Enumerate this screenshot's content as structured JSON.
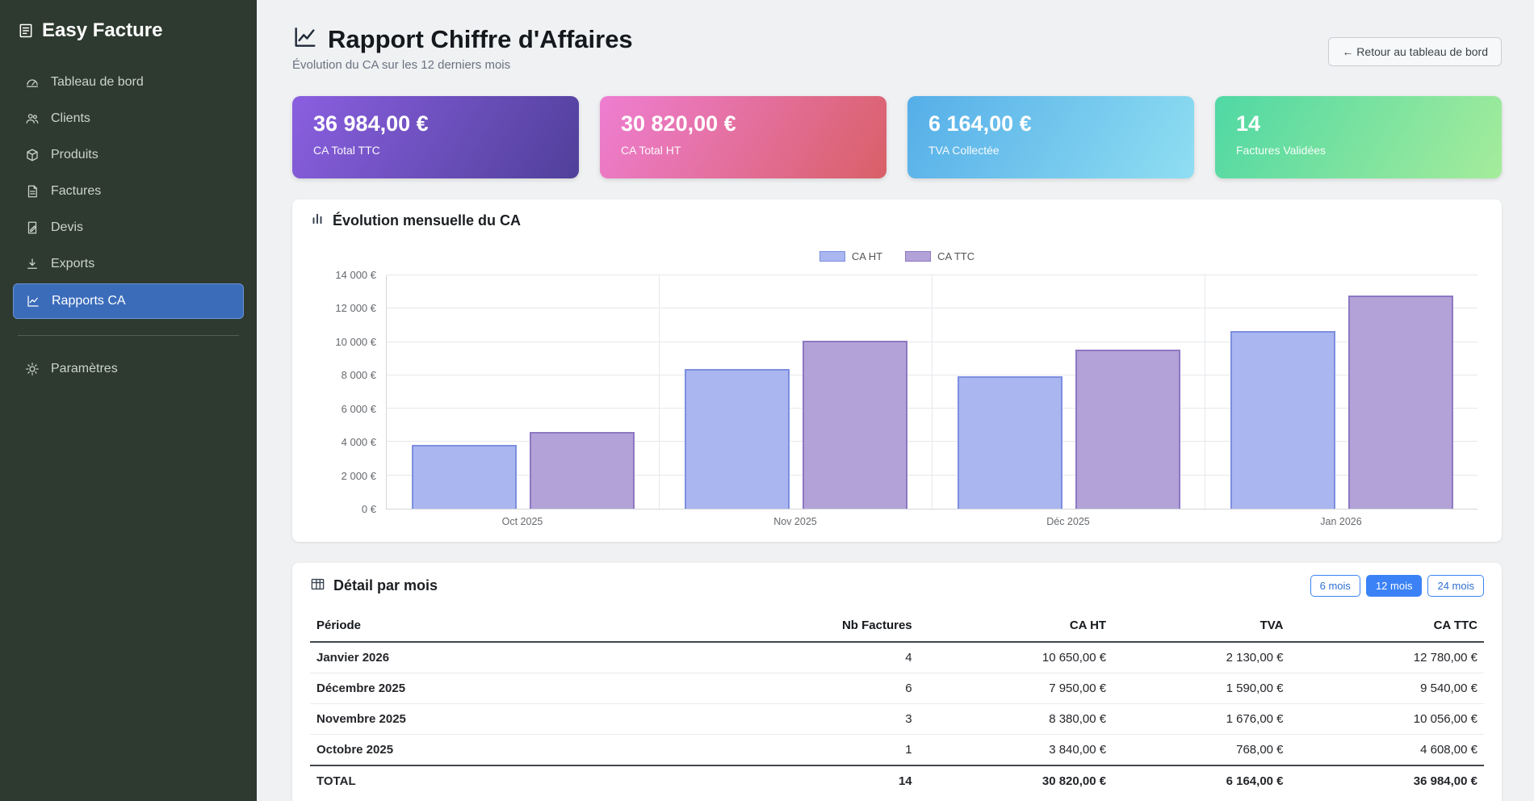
{
  "app": {
    "title": "Easy Facture"
  },
  "sidebar": {
    "items": [
      {
        "id": "dashboard",
        "icon": "dashboard-icon",
        "label": "Tableau de bord",
        "active": false,
        "separated": false
      },
      {
        "id": "clients",
        "icon": "clients-icon",
        "label": "Clients",
        "active": false,
        "separated": false
      },
      {
        "id": "products",
        "icon": "products-icon",
        "label": "Produits",
        "active": false,
        "separated": false
      },
      {
        "id": "invoices",
        "icon": "invoices-icon",
        "label": "Factures",
        "active": false,
        "separated": false
      },
      {
        "id": "quotes",
        "icon": "quotes-icon",
        "label": "Devis",
        "active": false,
        "separated": false
      },
      {
        "id": "exports",
        "icon": "exports-icon",
        "label": "Exports",
        "active": false,
        "separated": false
      },
      {
        "id": "reports",
        "icon": "reports-icon",
        "label": "Rapports CA",
        "active": true,
        "separated": false
      },
      {
        "id": "settings",
        "icon": "settings-icon",
        "label": "Paramètres",
        "active": false,
        "separated": true
      }
    ]
  },
  "header": {
    "title": "Rapport Chiffre d'Affaires",
    "subtitle": "Évolution du CA sur les 12 derniers mois",
    "back_button_label": "← Retour au tableau de bord"
  },
  "stat_cards": [
    {
      "value": "36 984,00 €",
      "label": "CA Total TTC",
      "gradient": [
        "#8a5fe0",
        "#50409a"
      ]
    },
    {
      "value": "30 820,00 €",
      "label": "CA Total HT",
      "gradient": [
        "#ee7ed2",
        "#d96067"
      ]
    },
    {
      "value": "6 164,00 €",
      "label": "TVA Collectée",
      "gradient": [
        "#55aee8",
        "#8fdef2"
      ]
    },
    {
      "value": "14",
      "label": "Factures Validées",
      "gradient": [
        "#4fd8a4",
        "#a5ec9b"
      ]
    }
  ],
  "chart_card": {
    "title": "Évolution mensuelle du CA"
  },
  "chart_data": {
    "type": "bar",
    "title": "Évolution mensuelle du CA",
    "categories": [
      "Oct 2025",
      "Nov 2025",
      "Déc 2025",
      "Jan 2026"
    ],
    "series": [
      {
        "name": "CA HT",
        "values": [
          3840,
          8380,
          7950,
          10650
        ],
        "fill": "#aab6f0",
        "stroke": "#7c8fe0"
      },
      {
        "name": "CA TTC",
        "values": [
          4608,
          10056,
          9540,
          12780
        ],
        "fill": "#b2a2d8",
        "stroke": "#8d78c2"
      }
    ],
    "ylim": [
      0,
      14000
    ],
    "ytick_step": 2000,
    "ytick_suffix": " €",
    "grid": true,
    "legend_position": "top"
  },
  "table_card": {
    "title": "Détail par mois",
    "range_buttons": [
      {
        "label": "6 mois",
        "active": false
      },
      {
        "label": "12 mois",
        "active": true
      },
      {
        "label": "24 mois",
        "active": false
      }
    ],
    "columns": [
      "Période",
      "Nb Factures",
      "CA HT",
      "TVA",
      "CA TTC"
    ],
    "rows": [
      [
        "Janvier 2026",
        "4",
        "10 650,00 €",
        "2 130,00 €",
        "12 780,00 €"
      ],
      [
        "Décembre 2025",
        "6",
        "7 950,00 €",
        "1 590,00 €",
        "9 540,00 €"
      ],
      [
        "Novembre 2025",
        "3",
        "8 380,00 €",
        "1 676,00 €",
        "10 056,00 €"
      ],
      [
        "Octobre 2025",
        "1",
        "3 840,00 €",
        "768,00 €",
        "4 608,00 €"
      ]
    ],
    "total_row": [
      "TOTAL",
      "14",
      "30 820,00 €",
      "6 164,00 €",
      "36 984,00 €"
    ]
  },
  "colors": {
    "sidebar_bg": "#2e3a2f",
    "active_item_bg": "#3a6cba",
    "accent_blue": "#3b82f6"
  }
}
